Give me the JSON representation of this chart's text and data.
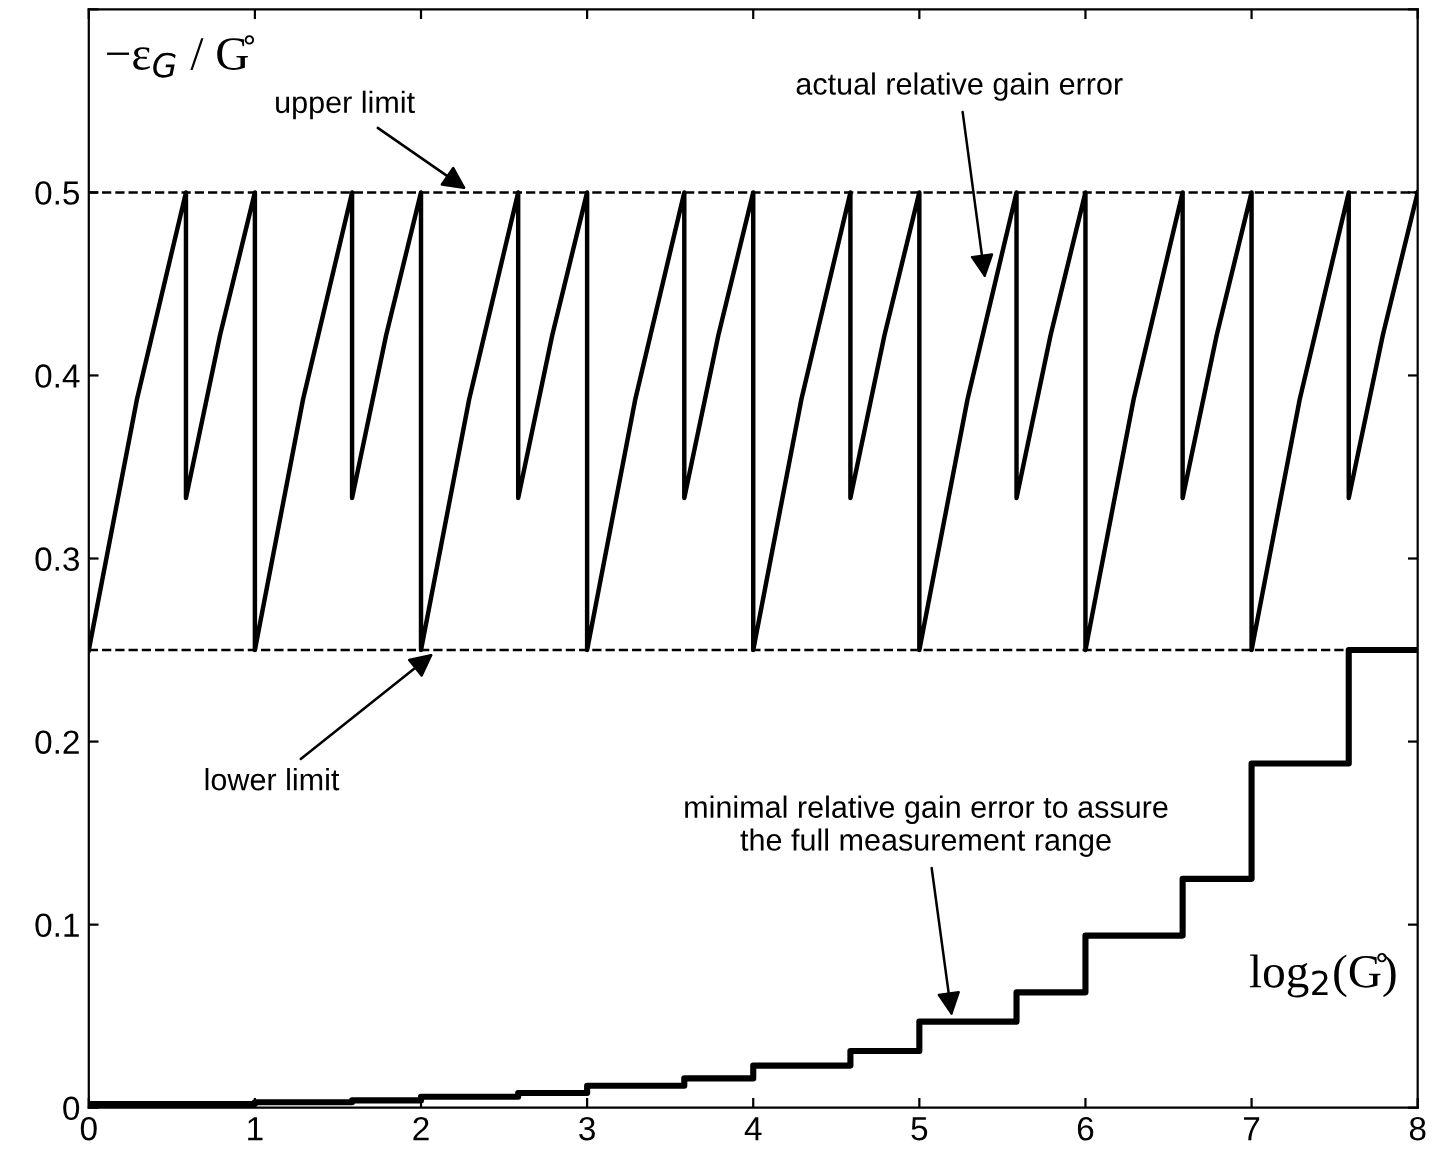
{
  "chart_data": {
    "type": "line",
    "ylabel": "−ε$_{G}$ / G̊",
    "xlabel": "log$_{2}$(G̊)",
    "xlim": [
      0,
      8
    ],
    "xticks": [
      0,
      1,
      2,
      3,
      4,
      5,
      6,
      7,
      8
    ],
    "ylim": [
      0,
      0.6
    ],
    "yticks": [
      0,
      0.1,
      0.2,
      0.3,
      0.4,
      0.5,
      {
        "value": 0.6,
        "label": null
      }
    ],
    "grid": false,
    "legend": false,
    "marker": "none",
    "line_style": "solid",
    "series": [
      {
        "color": "#000000",
        "x": [
          0,
          0.29,
          0.585,
          0.585,
          0.79,
          1,
          1,
          1.29,
          1.585,
          1.585,
          1.79,
          2,
          2,
          2.29,
          2.585,
          2.585,
          2.79,
          3,
          3,
          3.29,
          3.585,
          3.585,
          3.79,
          4,
          4,
          4.29,
          4.585,
          4.585,
          4.79,
          5,
          5,
          5.29,
          5.585,
          5.585,
          5.79,
          6,
          6,
          6.29,
          6.585,
          6.585,
          6.79,
          7,
          7,
          7.29,
          7.585,
          7.585,
          7.79,
          8
        ],
        "values": [
          0.25,
          0.387,
          0.5,
          0.333,
          0.422,
          0.5,
          0.25,
          0.387,
          0.5,
          0.333,
          0.422,
          0.5,
          0.25,
          0.387,
          0.5,
          0.333,
          0.422,
          0.5,
          0.25,
          0.387,
          0.5,
          0.333,
          0.422,
          0.5,
          0.25,
          0.387,
          0.5,
          0.333,
          0.422,
          0.5,
          0.25,
          0.387,
          0.5,
          0.333,
          0.422,
          0.5,
          0.25,
          0.387,
          0.5,
          0.333,
          0.422,
          0.5,
          0.25,
          0.387,
          0.5,
          0.333,
          0.422,
          0.5
        ]
      },
      {
        "type": "step",
        "color": "#000000",
        "x": [
          0,
          0.585,
          1,
          1.585,
          2,
          2.585,
          3,
          3.585,
          4,
          4.585,
          5,
          5.585,
          6,
          6.585,
          7,
          7.585,
          8
        ],
        "values": [
          0.002,
          0.002,
          0.003,
          0.004,
          0.006,
          0.008,
          0.012,
          0.016,
          0.023,
          0.031,
          0.047,
          0.063,
          0.094,
          0.125,
          0.188,
          0.25,
          0.25
        ]
      }
    ],
    "ref_lines": [
      {
        "axis": "y",
        "value": 0.5,
        "color": "#000000",
        "line_style": "dashed"
      },
      {
        "axis": "y",
        "value": 0.25,
        "color": "#000000",
        "line_style": "dashed"
      }
    ],
    "annotations": [
      {
        "text": "upper limit",
        "x": 2.3,
        "y": 0.5
      },
      {
        "text": "actual relative gain error",
        "x": 5.4,
        "y": 0.45
      },
      {
        "text": "lower limit",
        "x": 2.1,
        "y": 0.25
      },
      {
        "text": "minimal relative gain error to assure\nthe full measurement range",
        "x": 5.2,
        "y": 0.047
      }
    ]
  }
}
